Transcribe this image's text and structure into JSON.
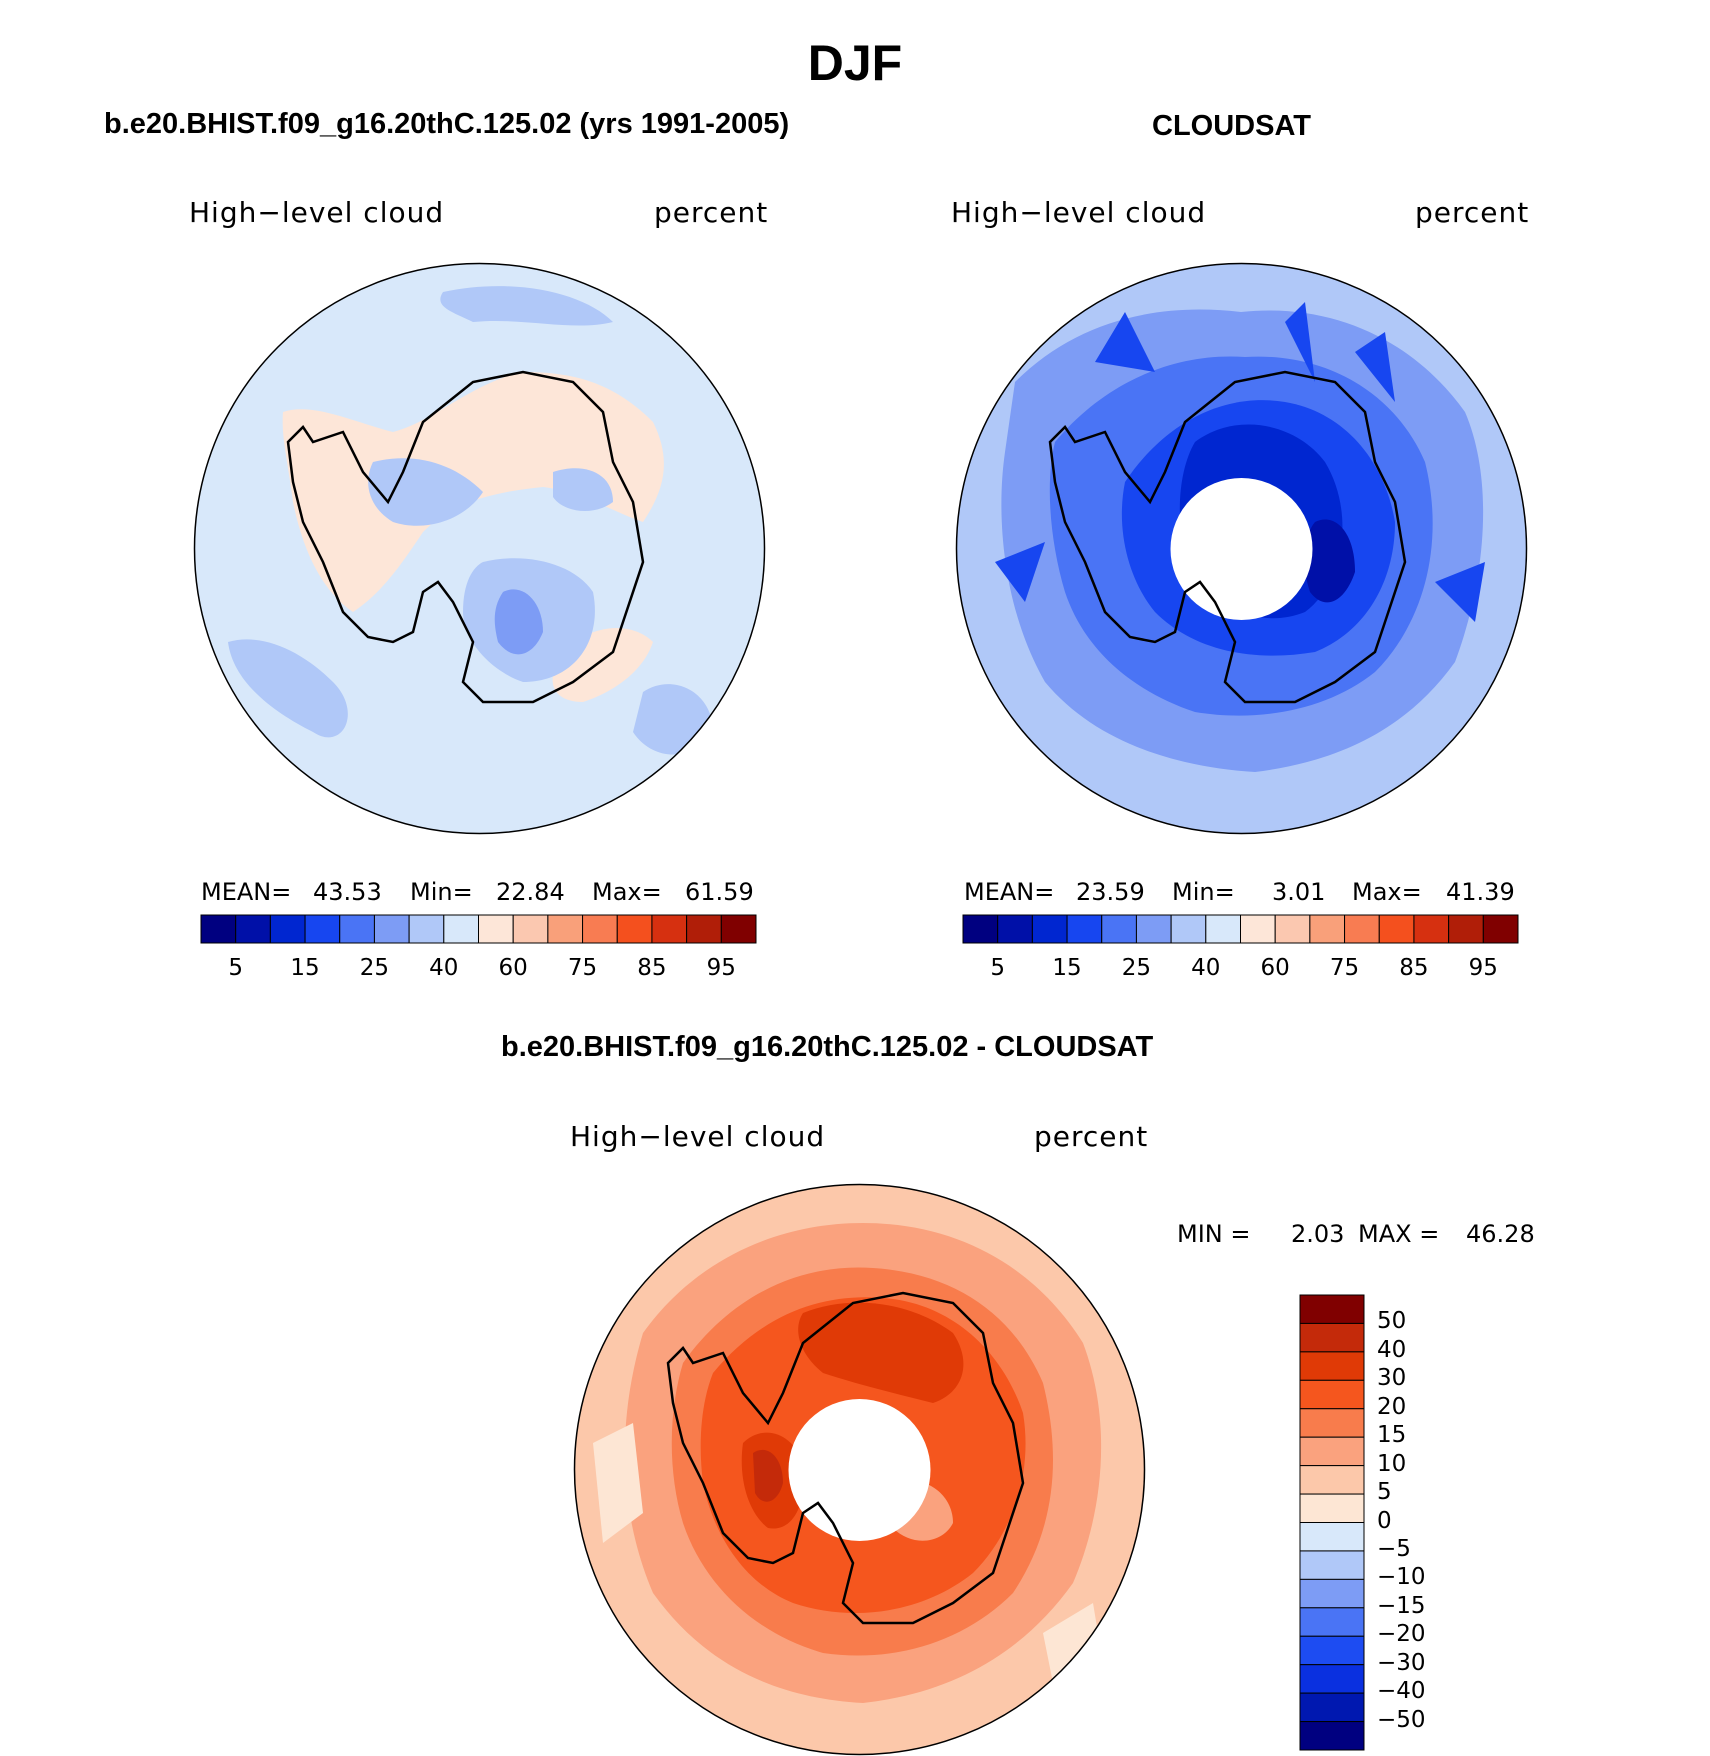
{
  "title": "DJF",
  "panels": [
    {
      "id": "model",
      "header": "b.e20.BHIST.f09_g16.20thC.125.02 (yrs 1991-2005)",
      "left_label": "High−level cloud",
      "right_label": "percent",
      "stats": {
        "mean_label": "MEAN=",
        "mean": "43.53",
        "min_label": "Min=",
        "min": "22.84",
        "max_label": "Max=",
        "max": "61.59"
      }
    },
    {
      "id": "obs",
      "header": "CLOUDSAT",
      "left_label": "High−level cloud",
      "right_label": "percent",
      "stats": {
        "mean_label": "MEAN=",
        "mean": "23.59",
        "min_label": "Min=",
        "min": "3.01",
        "max_label": "Max=",
        "max": "41.39"
      }
    },
    {
      "id": "diff",
      "header": "b.e20.BHIST.f09_g16.20thC.125.02 - CLOUDSAT",
      "left_label": "High−level cloud",
      "right_label": "percent",
      "stats": {
        "min_label": "MIN =",
        "min": "2.03",
        "max_label": "MAX =",
        "max": "46.28"
      }
    }
  ],
  "colorbar_main": {
    "colors": [
      "#000080",
      "#0010a8",
      "#0026d0",
      "#1746f0",
      "#4a74f5",
      "#7d9cf5",
      "#b0c8f8",
      "#d8e8fa",
      "#fde6d8",
      "#fbc8b0",
      "#f9a07a",
      "#f87c52",
      "#f4501e",
      "#d63010",
      "#b01e08",
      "#800000"
    ],
    "labels": [
      "5",
      "15",
      "25",
      "40",
      "60",
      "75",
      "85",
      "95"
    ]
  },
  "colorbar_diff": {
    "colors_top_to_bottom": [
      "#800000",
      "#c42a0a",
      "#e03a06",
      "#f5561e",
      "#f87c4c",
      "#faa27e",
      "#fcc8aa",
      "#fde6d4",
      "#d8e8fa",
      "#b0c8f8",
      "#7d9cf5",
      "#4a74f5",
      "#1d4cf2",
      "#0a30e0",
      "#0018b0",
      "#000080"
    ],
    "labels": [
      "50",
      "40",
      "30",
      "20",
      "15",
      "10",
      "5",
      "0",
      "−5",
      "−10",
      "−15",
      "−20",
      "−30",
      "−40",
      "−50"
    ]
  }
}
